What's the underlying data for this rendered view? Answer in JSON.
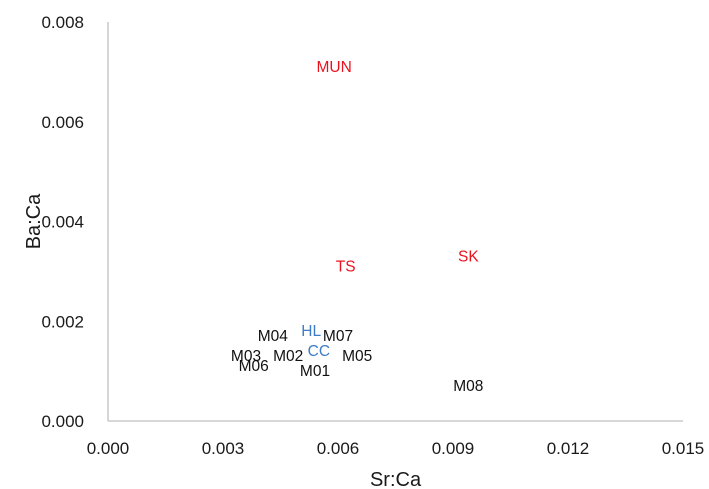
{
  "chart_data": {
    "type": "scatter",
    "title": "",
    "xlabel": "Sr:Ca",
    "ylabel": "Ba:Ca",
    "xlim": [
      0,
      0.015
    ],
    "ylim": [
      0,
      0.008
    ],
    "x_ticks": [
      "0.000",
      "0.003",
      "0.006",
      "0.009",
      "0.012",
      "0.015"
    ],
    "x_tick_values": [
      0,
      0.003,
      0.006,
      0.009,
      0.012,
      0.015
    ],
    "y_ticks": [
      "0.000",
      "0.002",
      "0.004",
      "0.006",
      "0.008"
    ],
    "y_tick_values": [
      0,
      0.002,
      0.004,
      0.006,
      0.008
    ],
    "grid": false,
    "markers": "text labels only",
    "colors": {
      "red": "#e8141d",
      "blue": "#3d7cc4",
      "black": "#111111",
      "axis": "#bfbfbf"
    },
    "points": [
      {
        "label": "MUN",
        "x": 0.0059,
        "y": 0.0071,
        "color": "red"
      },
      {
        "label": "TS",
        "x": 0.0062,
        "y": 0.0031,
        "color": "red"
      },
      {
        "label": "SK",
        "x": 0.0094,
        "y": 0.0033,
        "color": "red"
      },
      {
        "label": "HL",
        "x": 0.0053,
        "y": 0.0018,
        "color": "blue"
      },
      {
        "label": "CC",
        "x": 0.0055,
        "y": 0.0014,
        "color": "blue"
      },
      {
        "label": "M07",
        "x": 0.006,
        "y": 0.0017,
        "color": "black"
      },
      {
        "label": "M04",
        "x": 0.0043,
        "y": 0.0017,
        "color": "black"
      },
      {
        "label": "M03",
        "x": 0.0036,
        "y": 0.0013,
        "color": "black"
      },
      {
        "label": "M02",
        "x": 0.0047,
        "y": 0.0013,
        "color": "black"
      },
      {
        "label": "M05",
        "x": 0.0065,
        "y": 0.0013,
        "color": "black"
      },
      {
        "label": "M06",
        "x": 0.0038,
        "y": 0.0011,
        "color": "black"
      },
      {
        "label": "M01",
        "x": 0.0054,
        "y": 0.001,
        "color": "black"
      },
      {
        "label": "M08",
        "x": 0.0094,
        "y": 0.0007,
        "color": "black"
      }
    ]
  }
}
